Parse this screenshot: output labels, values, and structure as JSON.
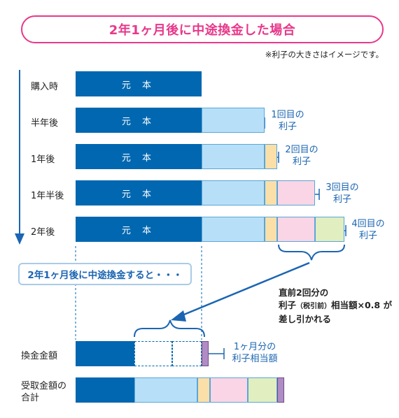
{
  "title": "2年1ヶ月後に中途換金した場合",
  "note": "※利子の大きさはイメージです。",
  "principal_label": "元 本",
  "rows": [
    {
      "label": "購入時"
    },
    {
      "label": "半年後"
    },
    {
      "label": "1年後"
    },
    {
      "label": "1年半後"
    },
    {
      "label": "2年後"
    }
  ],
  "callouts": {
    "first": [
      "1回目の",
      "利子"
    ],
    "second": [
      "2回目の",
      "利子"
    ],
    "third": [
      "3回目の",
      "利子"
    ],
    "fourth": [
      "4回目の",
      "利子"
    ],
    "one_month": [
      "1ヶ月分の",
      "利子相当額"
    ]
  },
  "message": "2年1ヶ月後に中途換金すると・・・",
  "explanation": {
    "line1": "直前2回分の",
    "line2_main": "利子",
    "line2_small": "（税引前）",
    "line2_rest": "相当額×0.8 が",
    "line3": "差し引かれる"
  },
  "bottom_rows": {
    "exchange": "換金金額",
    "total_line1": "受取金額の",
    "total_line2": "合計"
  },
  "colors": {
    "accent_pink": "#e8388a",
    "principal_blue": "#0067b0",
    "interest_1": "#b7e0f8",
    "interest_2": "#fbdfa8",
    "interest_3": "#f9d5e6",
    "interest_4": "#e0eec0",
    "one_month": "#b08cc4",
    "text_blue": "#1b65b2"
  }
}
